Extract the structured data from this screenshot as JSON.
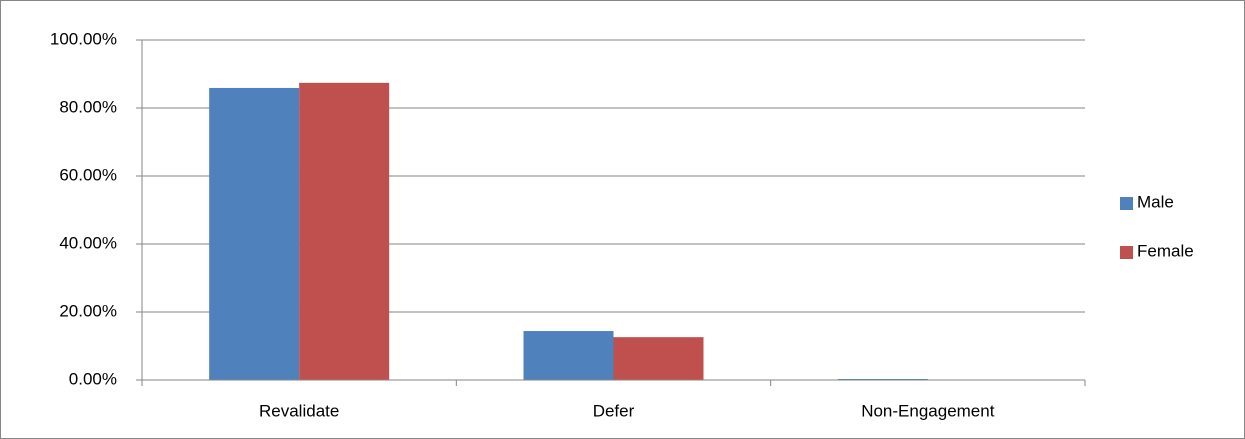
{
  "chart_data": {
    "type": "bar",
    "categories": [
      "Revalidate",
      "Defer",
      "Non-Engagement"
    ],
    "series": [
      {
        "name": "Male",
        "color": "#4f81bd",
        "values": [
          85.9,
          14.4,
          0.3
        ]
      },
      {
        "name": "Female",
        "color": "#c0504d",
        "values": [
          87.4,
          12.6,
          0
        ]
      }
    ],
    "ylim": [
      0,
      100
    ],
    "yticks": [
      {
        "value": 0,
        "label": "0.00%"
      },
      {
        "value": 20,
        "label": "20.00%"
      },
      {
        "value": 40,
        "label": "40.00%"
      },
      {
        "value": 60,
        "label": "60.00%"
      },
      {
        "value": 80,
        "label": "80.00%"
      },
      {
        "value": 100,
        "label": "100.00%"
      }
    ],
    "grid": true,
    "legend": "right"
  }
}
